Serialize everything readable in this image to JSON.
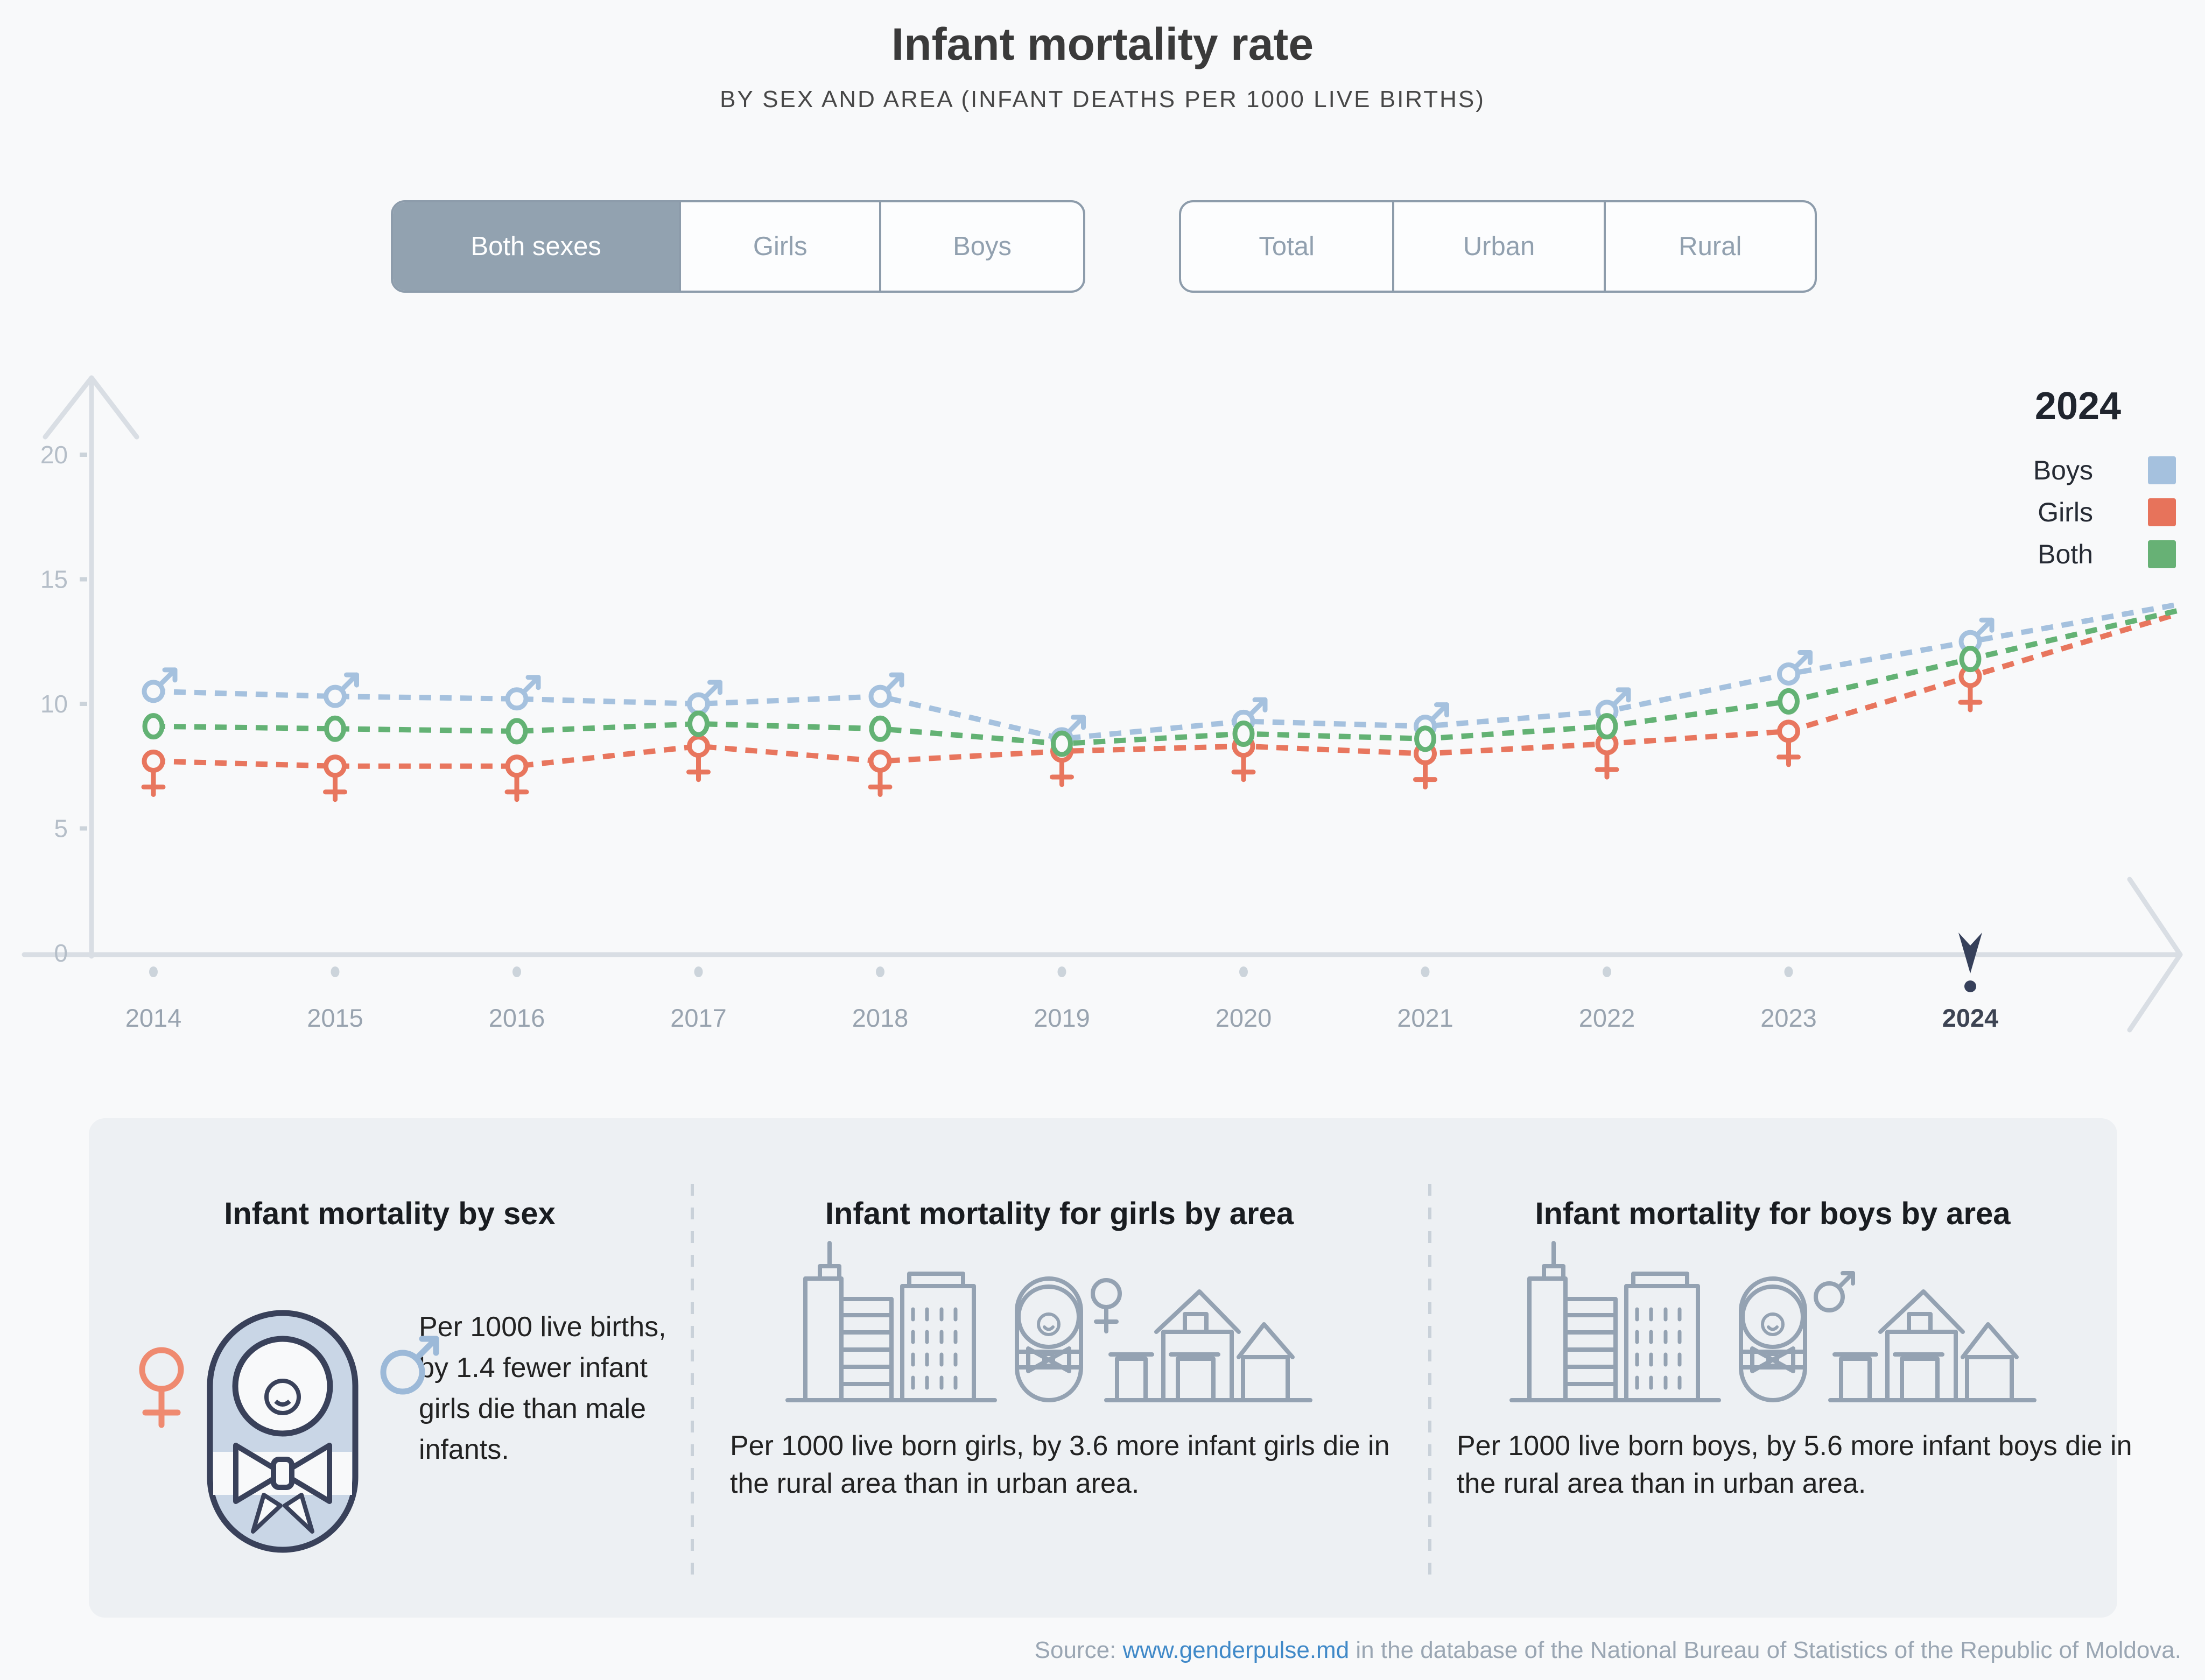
{
  "title": "Infant mortality rate",
  "subtitle": "BY SEX AND AREA (INFANT DEATHS PER 1000 LIVE BIRTHS)",
  "toggles": {
    "sex": {
      "options": [
        "Both sexes",
        "Girls",
        "Boys"
      ],
      "selected": "Both sexes"
    },
    "area": {
      "options": [
        "Total",
        "Urban",
        "Rural"
      ],
      "selected": ""
    }
  },
  "legend": {
    "year": "2024",
    "entries": [
      {
        "label": "Boys",
        "color": "#a5c1de"
      },
      {
        "label": "Girls",
        "color": "#e7735b"
      },
      {
        "label": "Both",
        "color": "#67b175"
      }
    ]
  },
  "chart_data": {
    "type": "line",
    "x": [
      2014,
      2015,
      2016,
      2017,
      2018,
      2019,
      2020,
      2021,
      2022,
      2023,
      2024
    ],
    "series": [
      {
        "name": "Boys",
        "marker": "male",
        "color": "#a5c1de",
        "values": [
          10.5,
          10.3,
          10.2,
          10.0,
          10.3,
          8.6,
          9.3,
          9.1,
          9.7,
          11.2,
          12.5
        ]
      },
      {
        "name": "Girls",
        "marker": "female",
        "color": "#e8765e",
        "values": [
          7.7,
          7.5,
          7.5,
          8.3,
          7.7,
          8.1,
          8.3,
          8.0,
          8.4,
          8.9,
          11.1
        ]
      },
      {
        "name": "Both",
        "marker": "circle",
        "color": "#63b274",
        "values": [
          9.1,
          9.0,
          8.9,
          9.2,
          9.0,
          8.4,
          8.8,
          8.6,
          9.1,
          10.1,
          11.8
        ]
      }
    ],
    "title": "Infant mortality rate",
    "xlabel": "",
    "ylabel": "",
    "ylim": [
      0,
      20
    ],
    "yticks": [
      0,
      5,
      10,
      15,
      20
    ],
    "grid": false,
    "legend_position": "top-right",
    "highlighted_year": "2024"
  },
  "cards": [
    {
      "title": "Infant mortality by sex",
      "text": "Per 1000 live births, by 1.4 fewer infant girls die than male infants."
    },
    {
      "title": "Infant mortality for girls by area",
      "text": "Per 1000 live born girls, by 3.6 more infant girls die in the rural area than in urban area."
    },
    {
      "title": "Infant mortality for boys by area",
      "text": "Per 1000 live born boys, by 5.6 more infant boys die in the rural area than in urban area."
    }
  ],
  "source": {
    "prefix": "Source: ",
    "link": "www.genderpulse.md",
    "suffix": " in the database of the National Bureau of Statistics of the Republic of Moldova."
  },
  "colors": {
    "background": "#f8f9fa",
    "panel": "#edf0f3",
    "navy": "#39415a",
    "axis": "#d9dee4",
    "selected_toggle": "#92a2b0",
    "icon_stroke": "#94a2b2"
  }
}
